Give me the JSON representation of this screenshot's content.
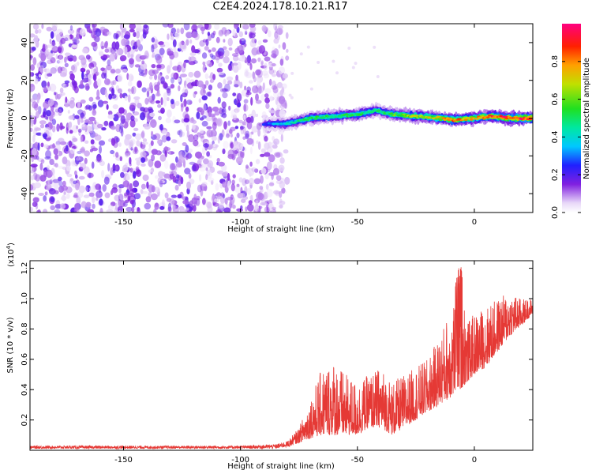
{
  "title": "C2E4.2024.178.10.21.R17",
  "colors": {
    "snr_line": "#e53935",
    "axis": "#000000"
  },
  "chart_data": [
    {
      "type": "heatmap",
      "xlabel": "Height of straight line (km)",
      "ylabel": "Frequency (Hz)",
      "xlim": [
        -190,
        25
      ],
      "ylim": [
        -50,
        50
      ],
      "x_ticks": [
        "-150",
        "-100",
        "-50",
        "0"
      ],
      "x_tick_values": [
        -150,
        -100,
        -50,
        0
      ],
      "y_ticks": [
        "-40",
        "-20",
        "0",
        "20",
        "40"
      ],
      "y_tick_values": [
        -40,
        -20,
        0,
        20,
        40
      ],
      "colorbar": {
        "label": "Normalized spectral amplitude",
        "range": [
          0,
          1
        ],
        "ticks": [
          "0.0",
          "0.2",
          "0.4",
          "0.6",
          "0.8"
        ],
        "tick_values": [
          0,
          0.2,
          0.4,
          0.6,
          0.8
        ]
      },
      "noise_region": {
        "x_range": [
          -190,
          -80
        ],
        "freq_range": [
          -50,
          50
        ],
        "amplitude": [
          0.05,
          0.2
        ]
      },
      "ridge": [
        {
          "x": -90,
          "freq": -3,
          "amp": 0.25
        },
        {
          "x": -80,
          "freq": -3,
          "amp": 0.4
        },
        {
          "x": -70,
          "freq": 0,
          "amp": 0.5
        },
        {
          "x": -60,
          "freq": 1,
          "amp": 0.5
        },
        {
          "x": -50,
          "freq": 2,
          "amp": 0.5
        },
        {
          "x": -42,
          "freq": 4,
          "amp": 0.45
        },
        {
          "x": -35,
          "freq": 2,
          "amp": 0.55
        },
        {
          "x": -25,
          "freq": 1,
          "amp": 0.65
        },
        {
          "x": -15,
          "freq": 0,
          "amp": 0.7
        },
        {
          "x": -8,
          "freq": -1,
          "amp": 0.8
        },
        {
          "x": 0,
          "freq": 0,
          "amp": 0.7
        },
        {
          "x": 8,
          "freq": 1,
          "amp": 0.85
        },
        {
          "x": 15,
          "freq": 0,
          "amp": 0.9
        },
        {
          "x": 25,
          "freq": 0,
          "amp": 0.9
        }
      ]
    },
    {
      "type": "line",
      "xlabel": "Height of straight line (km)",
      "ylabel": "SNR (10 * v/v)",
      "y_multiplier": "(x10",
      "y_multiplier_exp": "4",
      "y_multiplier_close": ")",
      "xlim": [
        -190,
        25
      ],
      "ylim": [
        0,
        1.25
      ],
      "x_ticks": [
        "-150",
        "-100",
        "-50",
        "0"
      ],
      "x_tick_values": [
        -150,
        -100,
        -50,
        0
      ],
      "y_ticks": [
        "0.2",
        "0.4",
        "0.6",
        "0.8",
        "1.0",
        "1.2"
      ],
      "y_tick_values": [
        0.2,
        0.4,
        0.6,
        0.8,
        1.0,
        1.2
      ],
      "series": [
        {
          "x": [
            -190,
            -150,
            -100,
            -85,
            -80,
            -75,
            -70,
            -65,
            -60,
            -55,
            -50,
            -45,
            -40,
            -35,
            -30,
            -25,
            -20,
            -15,
            -10,
            -6,
            -3,
            0,
            5,
            10,
            15,
            20,
            25
          ],
          "envelope_low": [
            0.01,
            0.01,
            0.01,
            0.01,
            0.02,
            0.05,
            0.08,
            0.1,
            0.1,
            0.1,
            0.1,
            0.15,
            0.15,
            0.1,
            0.15,
            0.2,
            0.25,
            0.3,
            0.35,
            0.4,
            0.45,
            0.5,
            0.55,
            0.65,
            0.75,
            0.82,
            0.9
          ],
          "envelope_high": [
            0.03,
            0.03,
            0.03,
            0.04,
            0.06,
            0.15,
            0.35,
            0.55,
            0.6,
            0.5,
            0.45,
            0.5,
            0.55,
            0.45,
            0.5,
            0.55,
            0.6,
            0.75,
            0.95,
            1.25,
            0.85,
            0.9,
            0.95,
            1.0,
            1.05,
            1.0,
            1.0
          ]
        }
      ]
    }
  ]
}
